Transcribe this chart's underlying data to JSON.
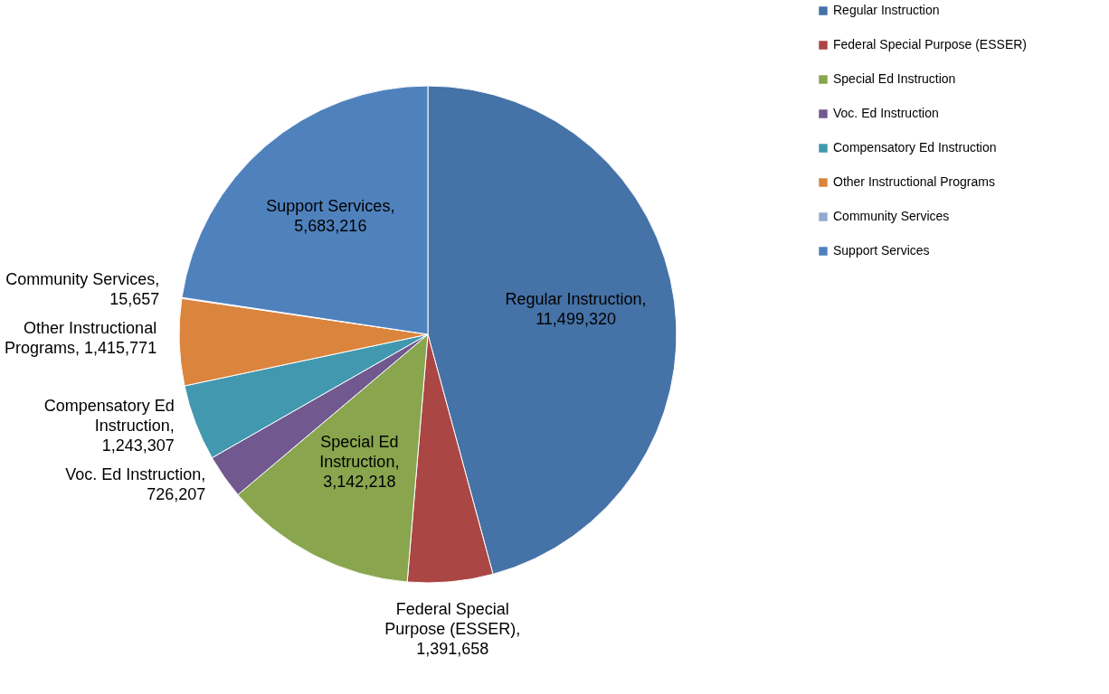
{
  "chart_data": {
    "type": "pie",
    "categories": [
      "Regular Instruction",
      "Federal Special Purpose (ESSER)",
      "Special Ed Instruction",
      "Voc. Ed Instruction",
      "Compensatory Ed Instruction",
      "Other Instructional Programs",
      "Community Services",
      "Support Services"
    ],
    "values": [
      11499320,
      1391658,
      3142218,
      726207,
      1243307,
      1415771,
      15657,
      5683216
    ],
    "value_labels": [
      "Regular Instruction, 11,499,320",
      "Federal Special Purpose (ESSER), 1,391,658",
      "Special Ed Instruction, 3,142,218",
      "Voc. Ed Instruction, 726,207",
      "Compensatory Ed Instruction, 1,243,307",
      "Other Instructional Programs, 1,415,771",
      "Community Services, 15,657",
      "Support Services, 5,683,216"
    ],
    "colors": [
      "#4572a7",
      "#aa4643",
      "#89a54e",
      "#71588f",
      "#4198af",
      "#db843d",
      "#93a9cf",
      "#4f81bd"
    ],
    "legend": "right"
  }
}
